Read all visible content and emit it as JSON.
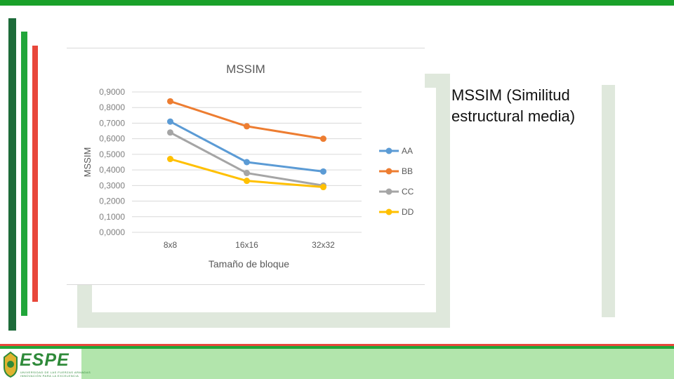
{
  "slide": {
    "description_text": "MSSIM (Similitud estructural media)",
    "logo_text": "ESPE",
    "logo_subtitle_1": "UNIVERSIDAD DE LAS FUERZAS ARMADAS",
    "logo_subtitle_2": "INNOVACIÓN PARA LA EXCELENCIA",
    "colors": {
      "top_bar": "#1aa12a",
      "bar_dark_green": "#1d6b3a",
      "bar_green": "#21a63a",
      "bar_red": "#e8473b",
      "frame": "#dfe8dc",
      "footer": "#b2e5ac"
    }
  },
  "chart_data": {
    "type": "line",
    "title": "MSSIM",
    "xlabel": "Tamaño de bloque",
    "ylabel": "MSSIM",
    "categories": [
      "8x8",
      "16x16",
      "32x32"
    ],
    "ylim": [
      0,
      0.9
    ],
    "yticks": [
      "0,0000",
      "0,1000",
      "0,2000",
      "0,3000",
      "0,4000",
      "0,5000",
      "0,6000",
      "0,7000",
      "0,8000",
      "0,9000"
    ],
    "grid": true,
    "legend_position": "right",
    "series": [
      {
        "name": "AA",
        "color": "#5b9bd5",
        "values": [
          0.71,
          0.45,
          0.39
        ]
      },
      {
        "name": "BB",
        "color": "#ed7d31",
        "values": [
          0.84,
          0.68,
          0.6
        ]
      },
      {
        "name": "CC",
        "color": "#a5a5a5",
        "values": [
          0.64,
          0.38,
          0.3
        ]
      },
      {
        "name": "DD",
        "color": "#ffc000",
        "values": [
          0.47,
          0.33,
          0.29
        ]
      }
    ]
  }
}
